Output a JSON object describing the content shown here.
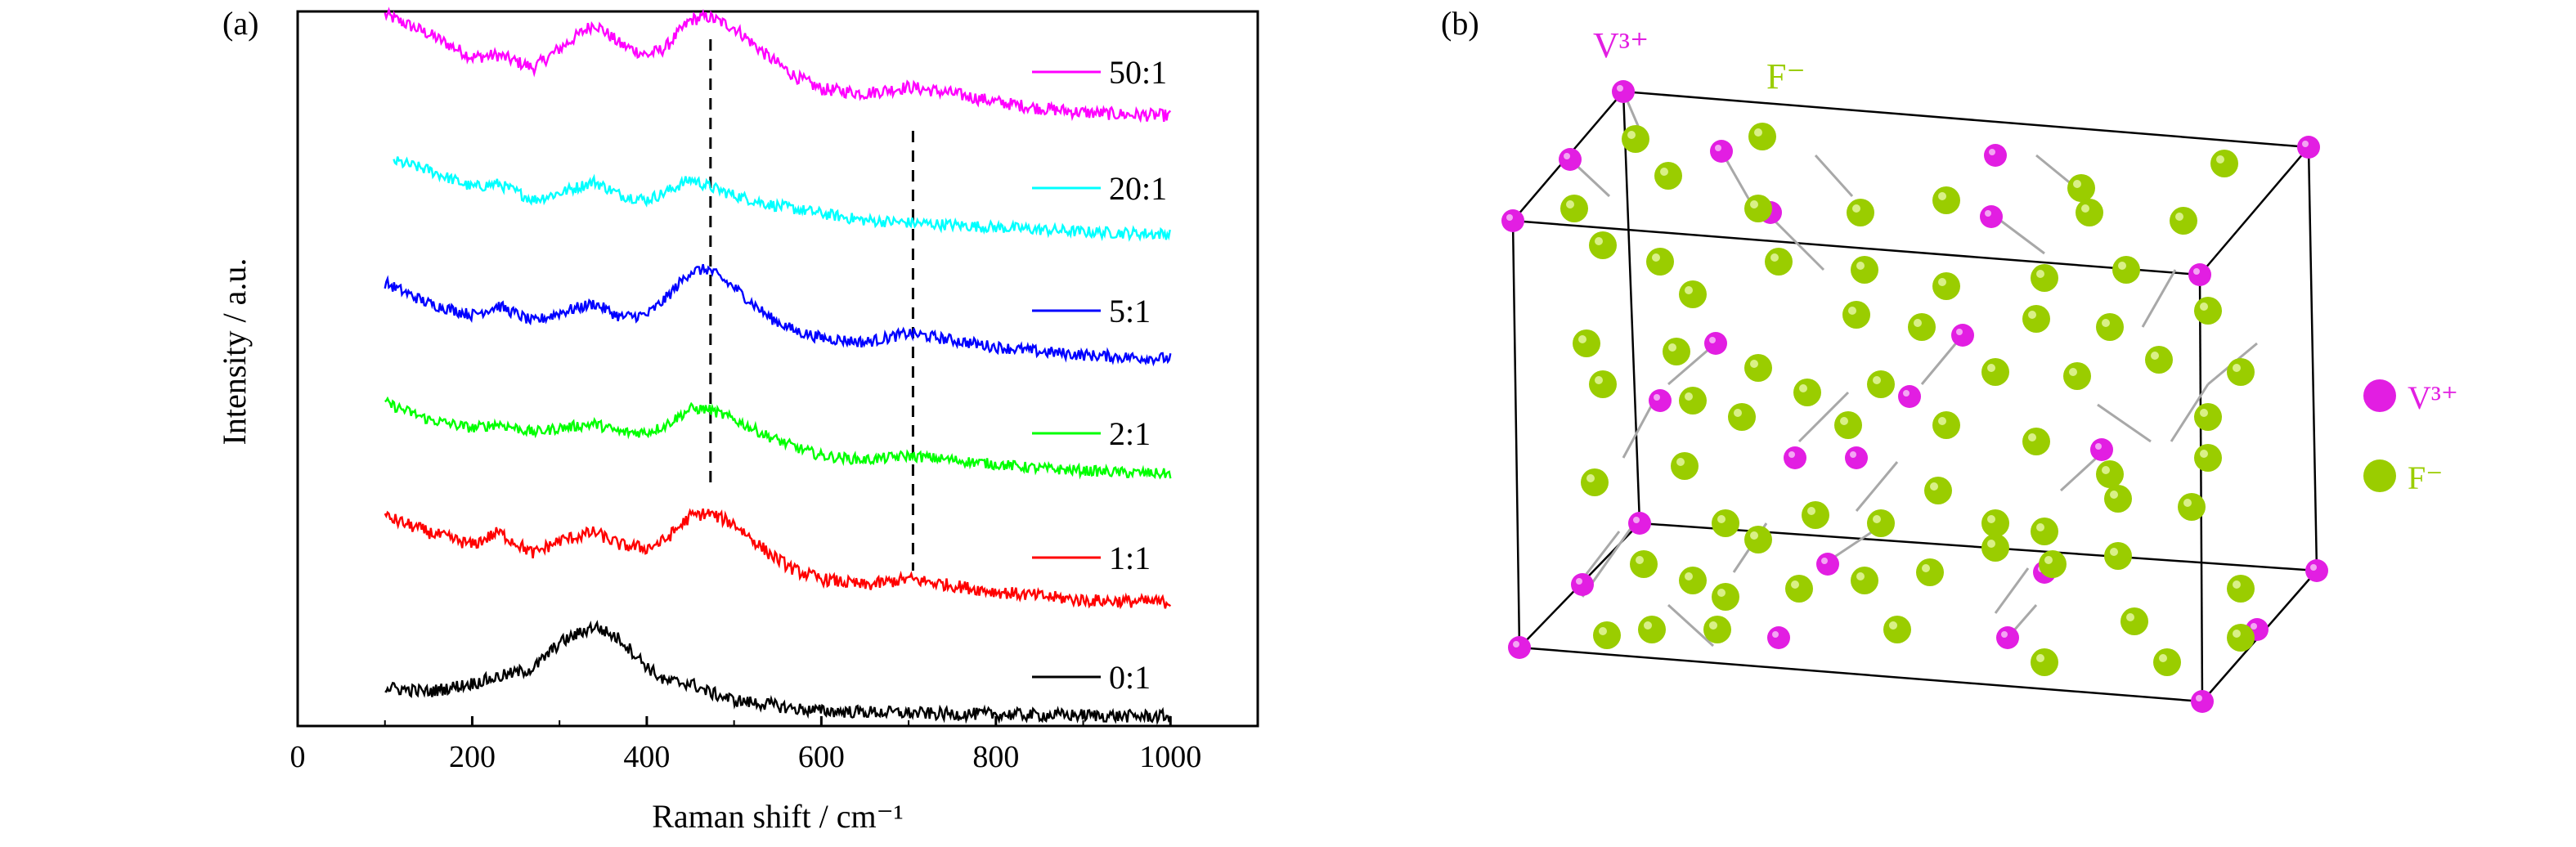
{
  "panel_a": {
    "label": "(a)",
    "chart_data": {
      "type": "line",
      "xlabel": "Raman shift / cm⁻¹",
      "ylabel": "Intensity / a.u.",
      "xlim": [
        0,
        1100
      ],
      "xticks": [
        0,
        200,
        400,
        600,
        800,
        1000
      ],
      "yticks": [],
      "grid": false,
      "legend_placement": "inline-right",
      "dashed_reference_lines": [
        473,
        705
      ],
      "x": [
        100,
        150,
        200,
        230,
        270,
        300,
        340,
        370,
        400,
        420,
        450,
        470,
        500,
        540,
        570,
        600,
        650,
        700,
        750,
        800,
        850,
        900,
        950,
        1000
      ],
      "series": [
        {
          "name": "50:1",
          "color": "#ff00ff",
          "noise": 0.06,
          "values": [
            1.0,
            0.82,
            0.6,
            0.62,
            0.5,
            0.68,
            0.92,
            0.72,
            0.62,
            0.68,
            0.95,
            0.98,
            0.88,
            0.6,
            0.42,
            0.3,
            0.26,
            0.32,
            0.26,
            0.18,
            0.12,
            0.08,
            0.06,
            0.05
          ]
        },
        {
          "name": "20:1",
          "color": "#00ffff",
          "noise": 0.05,
          "values": [
            0.7,
            0.6,
            0.45,
            0.48,
            0.34,
            0.4,
            0.5,
            0.38,
            0.34,
            0.4,
            0.52,
            0.46,
            0.38,
            0.3,
            0.26,
            0.22,
            0.16,
            0.14,
            0.12,
            0.1,
            0.08,
            0.06,
            0.05,
            0.04
          ]
        },
        {
          "name": "5:1",
          "color": "#0000ff",
          "noise": 0.05,
          "values": [
            0.7,
            0.52,
            0.42,
            0.5,
            0.36,
            0.44,
            0.52,
            0.4,
            0.42,
            0.55,
            0.8,
            0.82,
            0.66,
            0.4,
            0.28,
            0.22,
            0.18,
            0.26,
            0.2,
            0.14,
            0.1,
            0.07,
            0.05,
            0.04
          ]
        },
        {
          "name": "2:1",
          "color": "#00ff00",
          "noise": 0.05,
          "values": [
            0.72,
            0.56,
            0.48,
            0.52,
            0.44,
            0.48,
            0.52,
            0.44,
            0.44,
            0.5,
            0.66,
            0.66,
            0.56,
            0.4,
            0.3,
            0.22,
            0.18,
            0.22,
            0.18,
            0.14,
            0.1,
            0.08,
            0.06,
            0.05
          ]
        },
        {
          "name": "1:1",
          "color": "#ff0000",
          "noise": 0.06,
          "values": [
            0.85,
            0.7,
            0.58,
            0.7,
            0.5,
            0.62,
            0.7,
            0.58,
            0.55,
            0.62,
            0.85,
            0.88,
            0.78,
            0.5,
            0.34,
            0.26,
            0.2,
            0.26,
            0.2,
            0.14,
            0.1,
            0.06,
            0.05,
            0.04
          ]
        },
        {
          "name": "0:1",
          "color": "#000000",
          "noise": 0.06,
          "values": [
            0.3,
            0.26,
            0.34,
            0.4,
            0.48,
            0.72,
            0.88,
            0.75,
            0.5,
            0.36,
            0.34,
            0.26,
            0.18,
            0.14,
            0.1,
            0.08,
            0.07,
            0.06,
            0.05,
            0.05,
            0.04,
            0.04,
            0.03,
            0.03
          ]
        }
      ]
    }
  },
  "panel_b": {
    "label": "(b)",
    "top_labels": {
      "v": "V³⁺",
      "f": "F⁻"
    },
    "legend": [
      {
        "label": "V³⁺",
        "color": "#e21ee2"
      },
      {
        "label": "F⁻",
        "color": "#9acd00"
      }
    ]
  }
}
